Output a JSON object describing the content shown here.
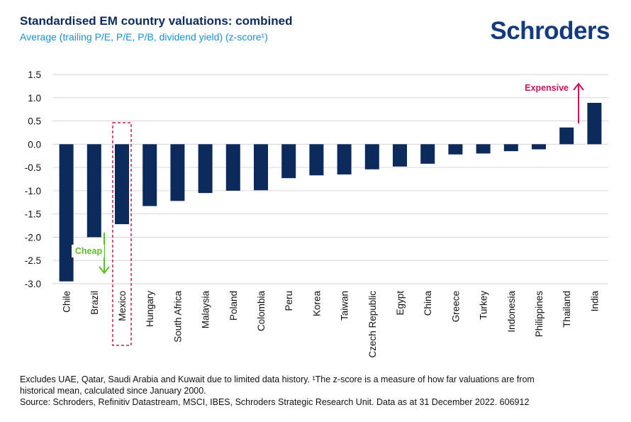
{
  "header": {
    "title": "Standardised EM country valuations: combined",
    "subtitle": "Average (trailing P/E, P/E, P/B, dividend yield) (z-score¹)",
    "logo": "Schroders"
  },
  "chart_data": {
    "type": "bar",
    "title": "Standardised EM country valuations: combined",
    "subtitle": "Average (trailing P/E, P/E, P/B, dividend yield) (z-score¹)",
    "categories": [
      "Chile",
      "Brazil",
      "Mexico",
      "Hungary",
      "South Africa",
      "Malaysia",
      "Poland",
      "Colombia",
      "Peru",
      "Korea",
      "Taiwan",
      "Czech Republic",
      "Egypt",
      "China",
      "Greece",
      "Turkey",
      "Indonesia",
      "Philippines",
      "Thailand",
      "India"
    ],
    "values": [
      -2.95,
      -2.0,
      -1.72,
      -1.33,
      -1.22,
      -1.05,
      -1.0,
      -0.99,
      -0.73,
      -0.67,
      -0.65,
      -0.54,
      -0.48,
      -0.42,
      -0.22,
      -0.2,
      -0.15,
      -0.11,
      0.36,
      0.89
    ],
    "ylim": [
      -3.0,
      1.5
    ],
    "yticks": [
      "1.5",
      "1.0",
      "0.5",
      "0.0",
      "-0.5",
      "-1.0",
      "-1.5",
      "-2.0",
      "-2.5",
      "-3.0"
    ],
    "ytick_values": [
      1.5,
      1.0,
      0.5,
      0.0,
      -0.5,
      -1.0,
      -1.5,
      -2.0,
      -2.5,
      -3.0
    ],
    "grid": true,
    "bar_color": "#0d2a5c",
    "highlight_category": "Mexico",
    "highlight_color": "#c2185b",
    "annotations": {
      "cheap": {
        "label": "Cheap",
        "color": "#5cbf2a"
      },
      "expensive": {
        "label": "Expensive",
        "color": "#c2185b"
      }
    }
  },
  "footnote": {
    "line1": "Excludes UAE, Qatar, Saudi Arabia and Kuwait due to limited data history. ¹The z-score is a measure of how far valuations are from",
    "line2": "historical mean, calculated since January 2000.",
    "line3": "Source: Schroders, Refinitiv Datastream, MSCI, IBES, Schroders Strategic Research Unit. Data as at 31 December 2022. 606912"
  }
}
